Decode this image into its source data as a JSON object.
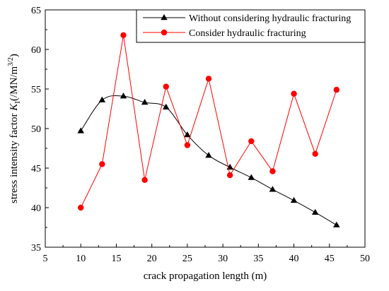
{
  "chart_data": {
    "type": "line",
    "title": "",
    "xlabel": "crack propagation length (m)",
    "ylabel": {
      "prefix": "stress intensity factor ",
      "var": "K",
      "sub": "I",
      "unit_open": "(/MN/m",
      "sup": "3/2",
      "unit_close": ")"
    },
    "xlim": [
      5,
      50
    ],
    "ylim": [
      35,
      65
    ],
    "xticks": [
      5,
      10,
      15,
      20,
      25,
      30,
      35,
      40,
      45,
      50
    ],
    "yticks": [
      35,
      40,
      45,
      50,
      55,
      60,
      65
    ],
    "legend_position": "top-right",
    "grid": false,
    "series": [
      {
        "name": "Without considering hydraulic fracturing",
        "color": "#000000",
        "marker": "triangle",
        "smooth": true,
        "x": [
          10,
          13,
          16,
          19,
          22,
          25,
          28,
          31,
          34,
          37,
          40,
          43,
          46
        ],
        "y": [
          49.7,
          53.6,
          54.1,
          53.3,
          52.7,
          49.2,
          46.6,
          45.1,
          43.8,
          42.3,
          40.9,
          39.4,
          37.8
        ]
      },
      {
        "name": "Consider hydraulic fracturing",
        "color": "#ff0000",
        "marker": "circle",
        "smooth": false,
        "x": [
          10,
          13,
          16,
          19,
          22,
          25,
          28,
          31,
          34,
          37,
          40,
          43,
          46
        ],
        "y": [
          40.0,
          45.5,
          61.8,
          43.5,
          55.3,
          47.9,
          56.3,
          44.1,
          48.4,
          44.6,
          54.4,
          46.8,
          54.9
        ]
      }
    ]
  }
}
